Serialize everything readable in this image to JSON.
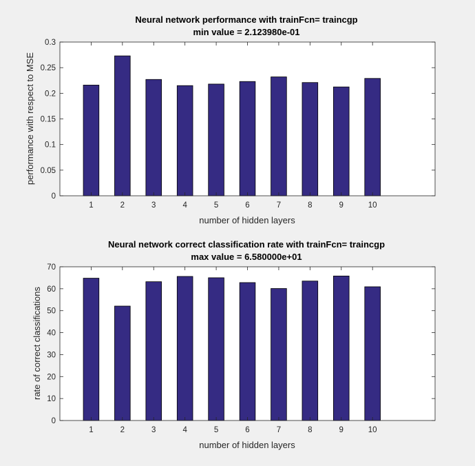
{
  "colors": {
    "figure_background": "#f0f0f0",
    "axes_background": "#ffffff",
    "bar_fill": "#352b83",
    "bar_edge": "#000000",
    "axis_color": "#262626"
  },
  "chart_data": [
    {
      "type": "bar",
      "title": "Neural network performance with trainFcn= traincgp",
      "subtitle": "min value = 2.123980e-01",
      "xlabel": "number of hidden layers",
      "ylabel": "performance with respect to MSE",
      "categories": [
        "1",
        "2",
        "3",
        "4",
        "5",
        "6",
        "7",
        "8",
        "9",
        "10"
      ],
      "x": [
        1,
        2,
        3,
        4,
        5,
        6,
        7,
        8,
        9,
        10
      ],
      "values": [
        0.216,
        0.273,
        0.227,
        0.215,
        0.218,
        0.223,
        0.232,
        0.221,
        0.2124,
        0.229
      ],
      "xlim": [
        0,
        12
      ],
      "ylim": [
        0,
        0.3
      ],
      "yticks": [
        0,
        0.05,
        0.1,
        0.15,
        0.2,
        0.25,
        0.3
      ],
      "ytick_labels": [
        "0",
        "0.05",
        "0.1",
        "0.15",
        "0.2",
        "0.25",
        "0.3"
      ],
      "grid": false
    },
    {
      "type": "bar",
      "title": "Neural network correct classification rate with trainFcn= traincgp",
      "subtitle": "max value = 6.580000e+01",
      "xlabel": "number of hidden layers",
      "ylabel": "rate of correct classifications",
      "categories": [
        "1",
        "2",
        "3",
        "4",
        "5",
        "6",
        "7",
        "8",
        "9",
        "10"
      ],
      "x": [
        1,
        2,
        3,
        4,
        5,
        6,
        7,
        8,
        9,
        10
      ],
      "values": [
        64.8,
        52.1,
        63.2,
        65.6,
        65.0,
        62.8,
        60.1,
        63.5,
        65.8,
        60.9
      ],
      "xlim": [
        0,
        12
      ],
      "ylim": [
        0,
        70
      ],
      "yticks": [
        0,
        10,
        20,
        30,
        40,
        50,
        60,
        70
      ],
      "ytick_labels": [
        "0",
        "10",
        "20",
        "30",
        "40",
        "50",
        "60",
        "70"
      ],
      "grid": false
    }
  ]
}
